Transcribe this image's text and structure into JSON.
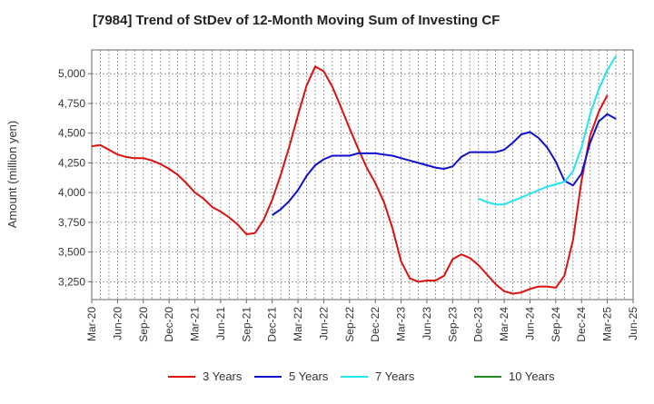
{
  "chart_data": {
    "type": "line",
    "title": "[7984]  Trend of StDev of 12-Month Moving Sum of Investing CF",
    "xlabel": "",
    "ylabel": "Amount (million yen)",
    "ylim": [
      3100,
      5200
    ],
    "yticks": [
      3250,
      3500,
      3750,
      4000,
      4250,
      4500,
      4750,
      5000
    ],
    "ytick_labels": [
      "3,250",
      "3,500",
      "3,750",
      "4,000",
      "4,250",
      "4,500",
      "4,750",
      "5,000"
    ],
    "xticks": [
      "Mar-20",
      "Jun-20",
      "Sep-20",
      "Dec-20",
      "Mar-21",
      "Jun-21",
      "Sep-21",
      "Dec-21",
      "Mar-22",
      "Jun-22",
      "Sep-22",
      "Dec-22",
      "Mar-23",
      "Jun-23",
      "Sep-23",
      "Dec-23",
      "Mar-24",
      "Jun-24",
      "Sep-24",
      "Dec-24",
      "Mar-25",
      "Jun-25"
    ],
    "grid": true,
    "legend": "bottom",
    "series": [
      {
        "name": "3 Years",
        "color": "#dd1111",
        "start_index": 0,
        "values": [
          4390,
          4400,
          4360,
          4320,
          4300,
          4290,
          4290,
          4270,
          4240,
          4200,
          4150,
          4080,
          4000,
          3950,
          3880,
          3840,
          3790,
          3730,
          3650,
          3660,
          3770,
          3940,
          4150,
          4390,
          4650,
          4900,
          5060,
          5020,
          4890,
          4720,
          4540,
          4370,
          4210,
          4080,
          3920,
          3700,
          3420,
          3280,
          3250,
          3260,
          3260,
          3300,
          3440,
          3480,
          3450,
          3390,
          3310,
          3230,
          3170,
          3150,
          3160,
          3190,
          3210,
          3210,
          3200,
          3300,
          3600,
          4100,
          4480,
          4680,
          4820
        ]
      },
      {
        "name": "5 Years",
        "color": "#1111cc",
        "start_index": 21,
        "values": [
          3810,
          3860,
          3930,
          4020,
          4140,
          4230,
          4280,
          4310,
          4310,
          4310,
          4330,
          4330,
          4330,
          4320,
          4310,
          4290,
          4270,
          4250,
          4230,
          4210,
          4200,
          4220,
          4300,
          4340,
          4340,
          4340,
          4340,
          4360,
          4420,
          4490,
          4510,
          4460,
          4380,
          4260,
          4100,
          4060,
          4160,
          4420,
          4600,
          4660,
          4620
        ]
      },
      {
        "name": "7 Years",
        "color": "#22e6ee",
        "start_index": 45,
        "values": [
          3950,
          3920,
          3900,
          3900,
          3930,
          3960,
          3990,
          4020,
          4050,
          4070,
          4090,
          4180,
          4380,
          4660,
          4870,
          5030,
          5150
        ]
      },
      {
        "name": "10 Years",
        "color": "#228822",
        "start_index": 0,
        "values": []
      }
    ]
  }
}
